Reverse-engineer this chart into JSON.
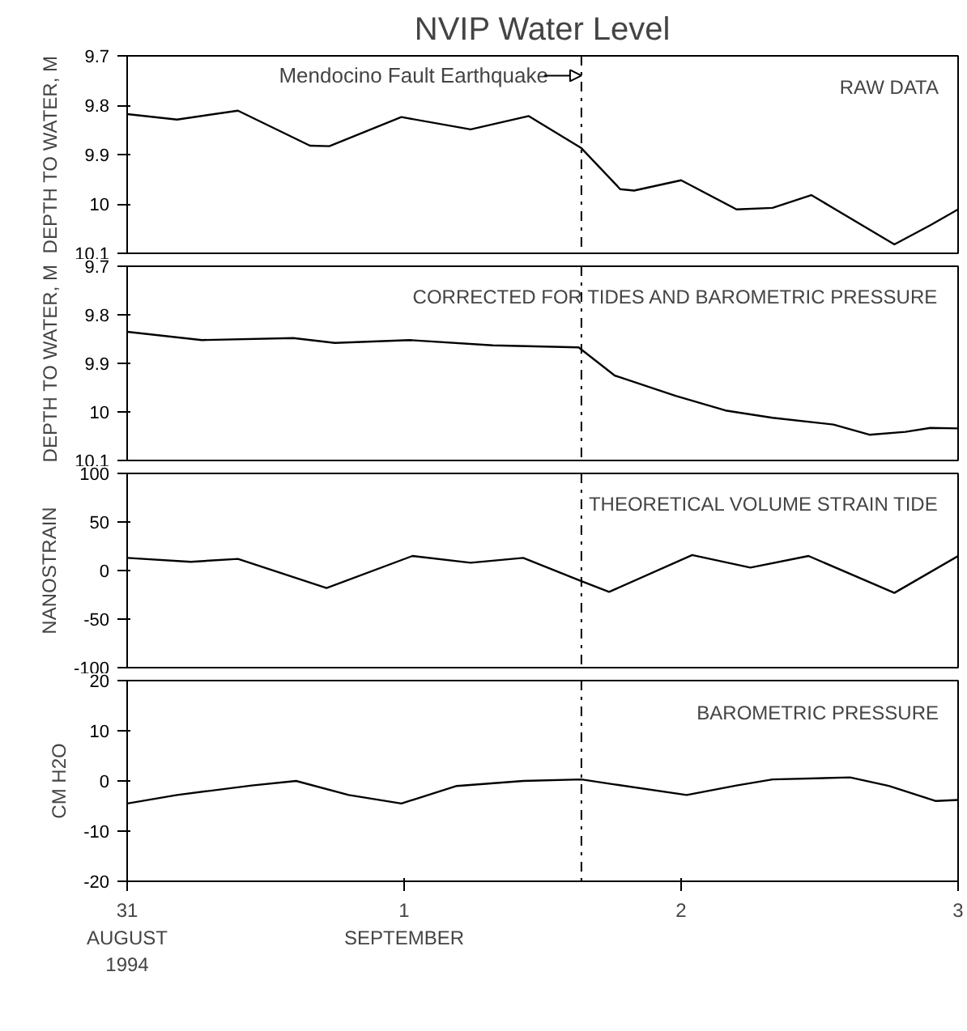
{
  "chart_data": [
    {
      "type": "line",
      "title": "NVIP Water Level",
      "ylabel": "DEPTH TO WATER, M",
      "annotations": [
        "RAW DATA"
      ],
      "tick_labels": "y",
      "grid": false,
      "line_style": "solid",
      "x": [
        0,
        0.18,
        0.4,
        0.66,
        0.73,
        0.99,
        1.24,
        1.45,
        1.64,
        1.78,
        1.83,
        2.0,
        2.2,
        2.33,
        2.47,
        2.77,
        2.9,
        3.0
      ],
      "values": [
        9.818,
        9.829,
        9.811,
        9.882,
        9.883,
        9.824,
        9.849,
        9.822,
        9.887,
        9.97,
        9.973,
        9.952,
        10.011,
        10.008,
        9.982,
        10.082,
        10.043,
        10.011
      ],
      "color": "#000000",
      "xlim": [
        0,
        3
      ],
      "ylim": [
        10.1,
        9.7
      ],
      "yticks": [
        9.7,
        9.8,
        9.9,
        {
          "value": 10,
          "label": "10"
        },
        10.1
      ],
      "ref_lines": [
        {
          "axis": "x",
          "value": 1.64,
          "label": "Mendocino Fault Earthquake",
          "line_style": "dashdot"
        }
      ]
    },
    {
      "type": "line",
      "ylabel": "DEPTH TO WATER, M",
      "annotations": [
        "CORRECTED FOR TIDES AND BAROMETRIC PRESSURE"
      ],
      "tick_labels": "y",
      "grid": false,
      "line_style": "solid",
      "x": [
        0,
        0.27,
        0.6,
        0.75,
        1.02,
        1.32,
        1.63,
        1.76,
        1.98,
        2.16,
        2.33,
        2.55,
        2.68,
        2.81,
        2.9,
        3.0
      ],
      "values": [
        9.835,
        9.852,
        9.848,
        9.858,
        9.852,
        9.863,
        9.867,
        9.925,
        9.967,
        9.997,
        10.012,
        10.026,
        10.047,
        10.041,
        10.033,
        10.034
      ],
      "color": "#000000",
      "xlim": [
        0,
        3
      ],
      "ylim": [
        10.1,
        9.7
      ],
      "yticks": [
        9.7,
        9.8,
        9.9,
        {
          "value": 10,
          "label": "10"
        },
        10.1
      ],
      "ref_lines": [
        {
          "axis": "x",
          "value": 1.64,
          "line_style": "dashdot"
        }
      ]
    },
    {
      "type": "line",
      "ylabel": "NANOSTRAIN",
      "annotations": [
        "THEORETICAL VOLUME STRAIN TIDE"
      ],
      "tick_labels": "y",
      "grid": false,
      "line_style": "solid",
      "x": [
        0,
        0.23,
        0.4,
        0.72,
        1.03,
        1.24,
        1.43,
        1.64,
        1.74,
        2.04,
        2.25,
        2.46,
        2.77,
        3.0
      ],
      "values": [
        13,
        9,
        12,
        -18,
        15,
        8,
        13,
        -11,
        -22,
        16,
        3,
        15,
        -23,
        15
      ],
      "color": "#000000",
      "xlim": [
        0,
        3
      ],
      "ylim": [
        -100,
        100
      ],
      "yticks": [
        -100,
        -50,
        0,
        50,
        100
      ],
      "ref_lines": [
        {
          "axis": "x",
          "value": 1.64,
          "line_style": "dashdot"
        }
      ]
    },
    {
      "type": "line",
      "ylabel": "CM H2O",
      "annotations": [
        "BAROMETRIC PRESSURE"
      ],
      "grid": false,
      "line_style": "solid",
      "x": [
        0,
        0.18,
        0.45,
        0.61,
        0.8,
        0.99,
        1.19,
        1.43,
        1.64,
        1.76,
        2.02,
        2.2,
        2.33,
        2.61,
        2.75,
        2.92,
        3.0
      ],
      "values": [
        -4.5,
        -2.8,
        -0.9,
        0,
        -2.8,
        -4.5,
        -1.0,
        0,
        0.3,
        -0.7,
        -2.8,
        -0.9,
        0.3,
        0.7,
        -1.0,
        -4.0,
        -3.8
      ],
      "color": "#000000",
      "xlim": [
        0,
        3
      ],
      "ylim": [
        -20,
        20
      ],
      "yticks": [
        -20,
        -10,
        0,
        10,
        20
      ],
      "xticks": [
        {
          "value": 0,
          "label": "31\nAUGUST\n1994"
        },
        {
          "value": 1,
          "label": "1\nSEPTEMBER"
        },
        {
          "value": 2,
          "label": "2"
        },
        {
          "value": 3,
          "label": "3"
        }
      ],
      "ref_lines": [
        {
          "axis": "x",
          "value": 1.64,
          "line_style": "dashdot"
        }
      ]
    }
  ]
}
